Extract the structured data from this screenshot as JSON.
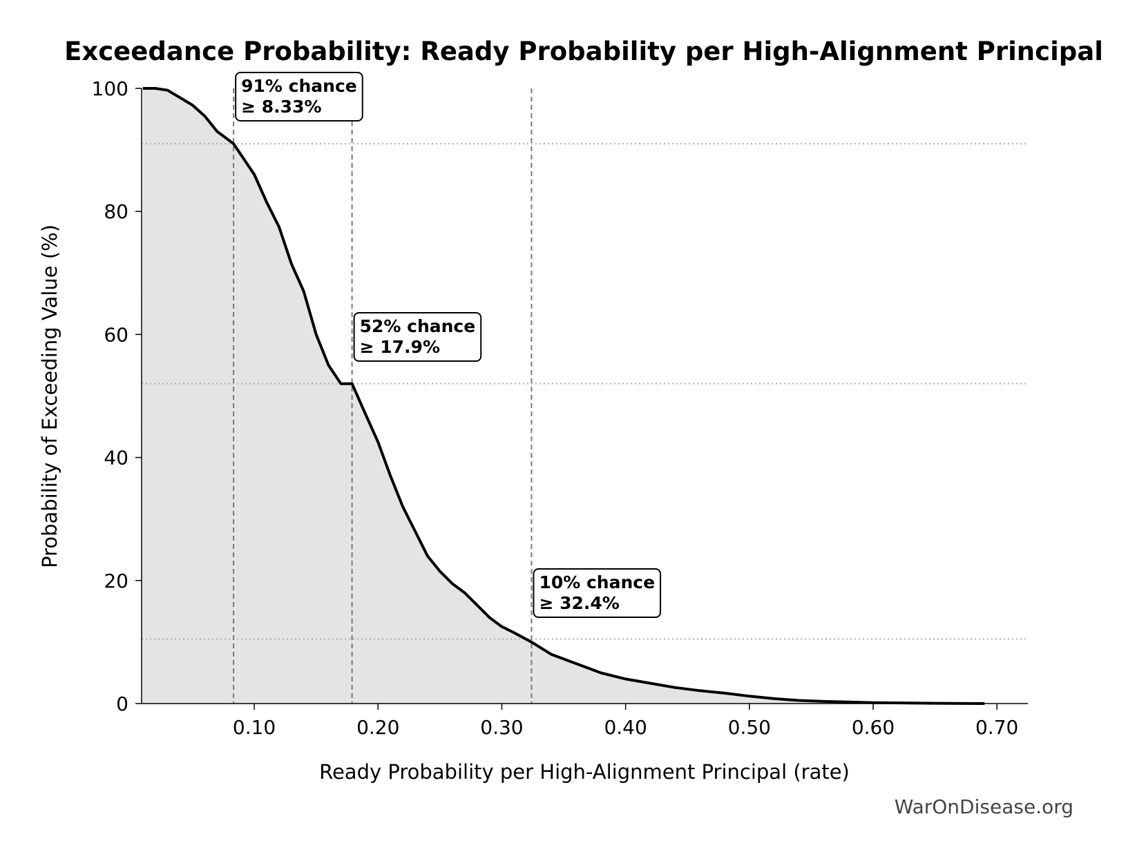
{
  "chart_data": {
    "type": "area",
    "title": "Exceedance Probability: Ready Probability per High-Alignment Principal",
    "xlabel": "Ready Probability per High-Alignment Principal (rate)",
    "ylabel": "Probability of Exceeding Value (%)",
    "xlim": [
      0.009,
      0.725
    ],
    "ylim": [
      0,
      100
    ],
    "xticks": [
      "0.10",
      "0.20",
      "0.30",
      "0.40",
      "0.50",
      "0.60",
      "0.70"
    ],
    "yticks": [
      "0",
      "20",
      "40",
      "60",
      "80",
      "100"
    ],
    "grid": false,
    "series": [
      {
        "x": [
          0.01,
          0.02,
          0.03,
          0.04,
          0.05,
          0.06,
          0.07,
          0.08,
          0.0833,
          0.09,
          0.1,
          0.11,
          0.12,
          0.13,
          0.14,
          0.15,
          0.16,
          0.17,
          0.179,
          0.19,
          0.2,
          0.21,
          0.22,
          0.23,
          0.24,
          0.25,
          0.26,
          0.27,
          0.28,
          0.29,
          0.3,
          0.31,
          0.324,
          0.34,
          0.36,
          0.38,
          0.4,
          0.42,
          0.44,
          0.46,
          0.48,
          0.5,
          0.52,
          0.54,
          0.56,
          0.58,
          0.6,
          0.65,
          0.69
        ],
        "values": [
          100,
          100,
          99.7,
          98.5,
          97.3,
          95.5,
          93,
          91.5,
          91,
          89,
          86,
          81.5,
          77.5,
          71.5,
          67,
          60,
          55,
          52,
          52,
          47,
          42.5,
          37,
          32,
          28,
          24,
          21.5,
          19.5,
          18,
          16,
          14,
          12.5,
          11.5,
          10,
          8,
          6.5,
          5,
          4,
          3.3,
          2.6,
          2.1,
          1.7,
          1.2,
          0.8,
          0.5,
          0.35,
          0.25,
          0.15,
          0.05,
          0
        ]
      }
    ],
    "reference_lines": {
      "vertical_x": [
        0.0833,
        0.179,
        0.324
      ],
      "horizontal_y": [
        91,
        52,
        10.5
      ]
    },
    "annotations": [
      {
        "line1": "91% chance",
        "line2": "≥ 8.33%",
        "x": 0.0833,
        "y": 91
      },
      {
        "line1": "52% chance",
        "line2": "≥ 17.9%",
        "x": 0.179,
        "y": 52
      },
      {
        "line1": "10% chance",
        "line2": "≥ 32.4%",
        "x": 0.324,
        "y": 10.5
      }
    ],
    "colors": {
      "line": "#000000",
      "fill": "#e4e4e4",
      "reference": "#777777"
    }
  },
  "watermark": "WarOnDisease.org"
}
